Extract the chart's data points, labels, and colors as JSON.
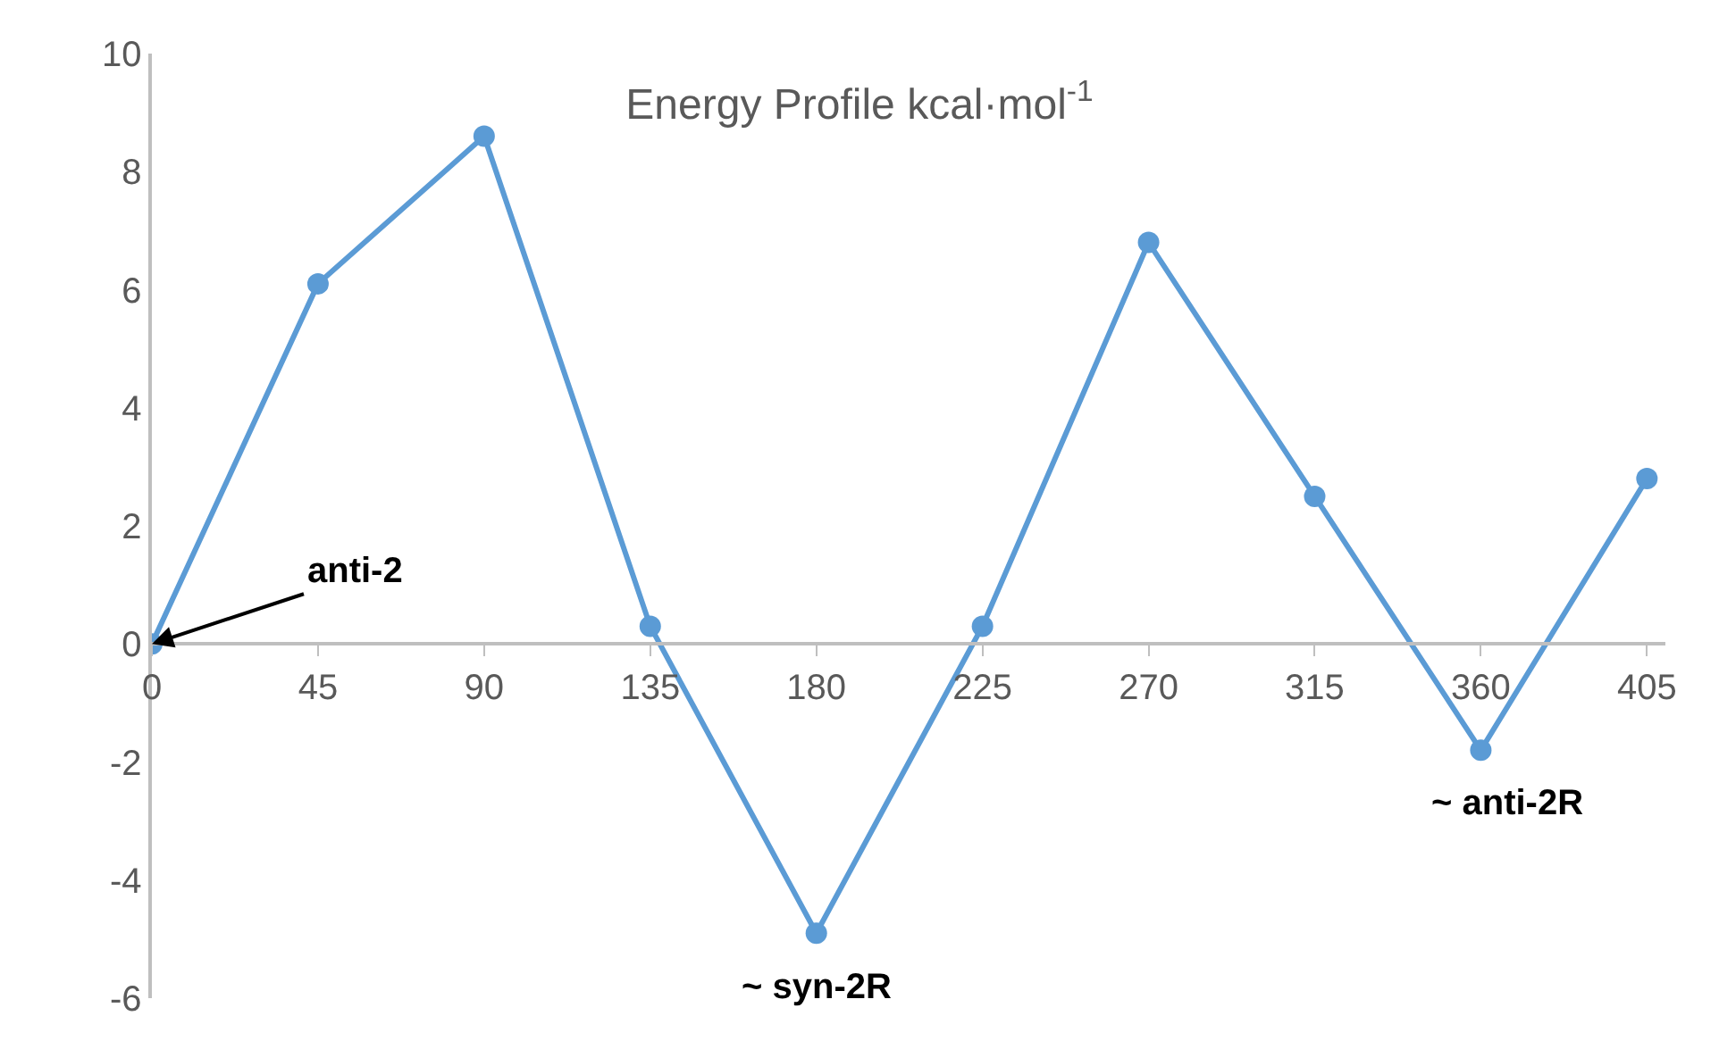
{
  "chart_data": {
    "type": "line",
    "title": "Energy Profile kcal·mol$^{-1}$",
    "x": [
      0,
      45,
      90,
      135,
      180,
      225,
      270,
      315,
      360,
      405
    ],
    "series": [
      {
        "color": "#5b9bd5",
        "values": [
          0,
          6.1,
          8.6,
          0.3,
          -4.9,
          0.3,
          6.8,
          2.5,
          -1.8,
          2.8
        ]
      }
    ],
    "xlim": [
      0,
      410
    ],
    "xticks": [
      0,
      45,
      90,
      135,
      180,
      225,
      270,
      315,
      360,
      405
    ],
    "ylim": [
      -6,
      10
    ],
    "yticks": [
      -6,
      -4,
      -2,
      0,
      2,
      4,
      6,
      8,
      10
    ],
    "annotations": [
      {
        "text": "anti-2",
        "x": 0,
        "y": 0
      },
      {
        "text": "~ syn-2R",
        "x": 180,
        "y": -4.9
      },
      {
        "text": "~ anti-2R",
        "x": 360,
        "y": -1.8
      }
    ],
    "marker": "circle",
    "line_style": "solid"
  }
}
